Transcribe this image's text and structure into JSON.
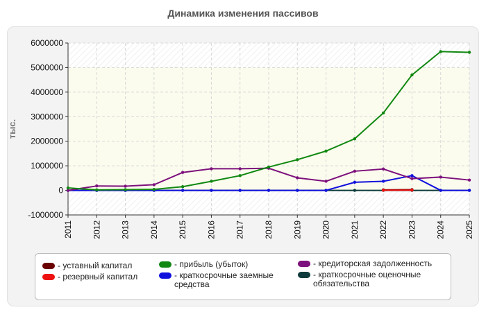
{
  "chart_data": {
    "type": "line",
    "title": "Динамика изменения пассивов",
    "ylabel": "тыс.",
    "xlabel": "",
    "x": [
      "2011",
      "2012",
      "2013",
      "2014",
      "2015",
      "2016",
      "2017",
      "2018",
      "2019",
      "2020",
      "2021",
      "2022",
      "2023",
      "2024",
      "2025"
    ],
    "ylim": [
      -1000000,
      6000000
    ],
    "yticks": [
      "-1000000",
      "0",
      "1000000",
      "2000000",
      "3000000",
      "4000000",
      "5000000",
      "6000000"
    ],
    "grid": true,
    "legend_position": "bottom",
    "series": [
      {
        "name": "уставный капитал",
        "color": "#6b0000",
        "values": [
          null,
          null,
          null,
          null,
          null,
          null,
          null,
          null,
          null,
          null,
          null,
          20000,
          30000,
          null,
          null
        ]
      },
      {
        "name": "резервный капитал",
        "color": "#ee1111",
        "values": [
          null,
          null,
          null,
          null,
          null,
          null,
          null,
          null,
          null,
          null,
          null,
          5000,
          10000,
          null,
          null
        ]
      },
      {
        "name": "прибыль (убыток)",
        "color": "#118811",
        "values": [
          100000,
          20000,
          30000,
          40000,
          150000,
          370000,
          600000,
          950000,
          1250000,
          1600000,
          2100000,
          3150000,
          4700000,
          5650000,
          5620000
        ]
      },
      {
        "name": "краткосрочные заемные средства",
        "color": "#1111dd",
        "values": [
          0,
          0,
          0,
          0,
          0,
          0,
          0,
          0,
          0,
          0,
          330000,
          370000,
          600000,
          0,
          0
        ]
      },
      {
        "name": "кредиторская задолженность",
        "color": "#7d117d",
        "values": [
          0,
          180000,
          170000,
          230000,
          730000,
          880000,
          880000,
          900000,
          510000,
          370000,
          780000,
          870000,
          480000,
          540000,
          420000
        ]
      },
      {
        "name": "краткосрочные оценочные обязательства",
        "color": "#0d3b3b",
        "values": [
          0,
          0,
          0,
          0,
          0,
          0,
          0,
          0,
          0,
          0,
          0,
          0,
          0,
          0,
          0
        ]
      }
    ]
  }
}
